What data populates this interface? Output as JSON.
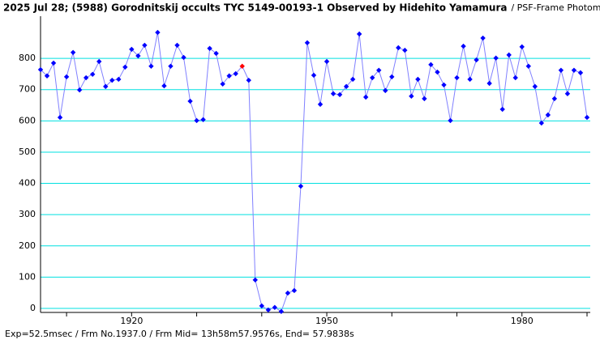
{
  "chart_data": {
    "type": "line",
    "title": "2025 Jul 28; (5988) Gorodnitskij occults TYC 5149-00193-1 Observed by Hidehito Yamamura",
    "subtitle": "/ PSF-Frame Photometry /",
    "footer": "Exp=52.5msec / Frm No.1937.0 / Frm Mid= 13h58m57.9576s,  End= 57.9838s",
    "x": [
      1906,
      1907,
      1908,
      1909,
      1910,
      1911,
      1912,
      1913,
      1914,
      1915,
      1916,
      1917,
      1918,
      1919,
      1920,
      1921,
      1922,
      1923,
      1924,
      1925,
      1926,
      1927,
      1928,
      1929,
      1930,
      1931,
      1932,
      1933,
      1934,
      1935,
      1936,
      1937,
      1938,
      1939,
      1940,
      1941,
      1942,
      1943,
      1944,
      1945,
      1946,
      1947,
      1948,
      1949,
      1950,
      1951,
      1952,
      1953,
      1954,
      1955,
      1956,
      1957,
      1958,
      1959,
      1960,
      1961,
      1962,
      1963,
      1964,
      1965,
      1966,
      1967,
      1968,
      1969,
      1970,
      1971,
      1972,
      1973,
      1974,
      1975,
      1976,
      1977,
      1978,
      1979,
      1980,
      1981,
      1982,
      1983,
      1984,
      1985,
      1986,
      1987,
      1988,
      1989,
      1990
    ],
    "series": [
      {
        "color": "#0000ff",
        "line_color": "#8080ff",
        "values": [
          764,
          744,
          785,
          611,
          741,
          819,
          699,
          738,
          749,
          790,
          710,
          730,
          733,
          772,
          829,
          808,
          842,
          775,
          883,
          712,
          775,
          842,
          803,
          663,
          601,
          604,
          832,
          816,
          718,
          744,
          751,
          775,
          730,
          91,
          8,
          -5,
          3,
          -10,
          49,
          57,
          391,
          850,
          746,
          653,
          790,
          687,
          684,
          710,
          733,
          878,
          676,
          738,
          762,
          697,
          741,
          834,
          826,
          679,
          733,
          671,
          780,
          756,
          715,
          601,
          738,
          839,
          733,
          795,
          865,
          720,
          801,
          637,
          811,
          738,
          837,
          775,
          710,
          593,
          619,
          671,
          762,
          687,
          762,
          754,
          611
        ]
      }
    ],
    "highlight_x": 1937,
    "highlight_color": "#ff0000",
    "xlim": [
      1906,
      1990.5
    ],
    "xticks": [
      1920,
      1950,
      1980
    ],
    "xminor": [
      1910,
      1930,
      1940,
      1960,
      1970,
      1990
    ],
    "ylim": [
      -13,
      935
    ],
    "yticks": [
      0,
      100,
      200,
      300,
      400,
      500,
      600,
      700,
      800
    ],
    "grid": true,
    "grid_color": "#00e0e0"
  }
}
